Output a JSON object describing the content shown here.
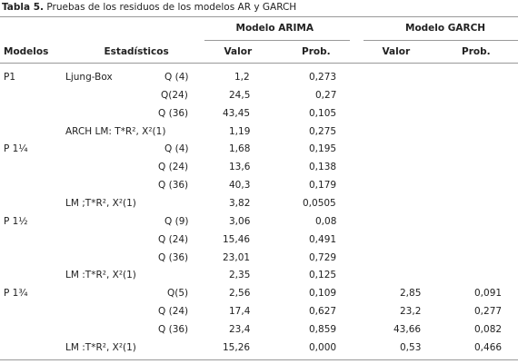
{
  "caption": {
    "label": "Tabla 5.",
    "text": "Pruebas de los residuos de los modelos AR y GARCH"
  },
  "table": {
    "groups": [
      "Modelo ARIMA",
      "Modelo GARCH"
    ],
    "columns": [
      "Modelos",
      "Estadísticos",
      "Valor",
      "Prob.",
      "Valor",
      "Prob."
    ],
    "rows": [
      {
        "model": "P1",
        "test": "Ljung-Box",
        "lag": "Q (4)",
        "arima": [
          "1,2",
          "0,273"
        ]
      },
      {
        "lag": "Q(24)",
        "arima": [
          "24,5",
          "0,27"
        ]
      },
      {
        "lag": "Q (36)",
        "arima": [
          "43,45",
          "0,105"
        ]
      },
      {
        "test": "ARCH LM: T*R², X²(1)",
        "arima": [
          "1,19",
          "0,275"
        ]
      },
      {
        "model": "P 1¼",
        "lag": "Q (4)",
        "arima": [
          "1,68",
          "0,195"
        ]
      },
      {
        "lag": "Q (24)",
        "arima": [
          "13,6",
          "0,138"
        ]
      },
      {
        "lag": "Q (36)",
        "arima": [
          "40,3",
          "0,179"
        ]
      },
      {
        "test": "LM ;T*R², X²(1)",
        "arima": [
          "3,82",
          "0,0505"
        ]
      },
      {
        "model": "P 1½",
        "lag": "Q (9)",
        "arima": [
          "3,06",
          "0,08"
        ]
      },
      {
        "lag": "Q (24)",
        "arima": [
          "15,46",
          "0,491"
        ]
      },
      {
        "lag": "Q (36)",
        "arima": [
          "23,01",
          "0,729"
        ]
      },
      {
        "test": "LM :T*R², X²(1)",
        "arima": [
          "2,35",
          "0,125"
        ]
      },
      {
        "model": "P 1¾",
        "lag": "Q(5)",
        "arima": [
          "2,56",
          "0,109"
        ],
        "garch": [
          "2,85",
          "0,091"
        ]
      },
      {
        "lag": "Q (24)",
        "arima": [
          "17,4",
          "0,627"
        ],
        "garch": [
          "23,2",
          "0,277"
        ]
      },
      {
        "lag": "Q (36)",
        "arima": [
          "23,4",
          "0,859"
        ],
        "garch": [
          "43,66",
          "0,082"
        ]
      },
      {
        "test": "LM :T*R², X²(1)",
        "arima": [
          "15,26",
          "0,000"
        ],
        "garch": [
          "0,53",
          "0,466"
        ]
      }
    ]
  }
}
